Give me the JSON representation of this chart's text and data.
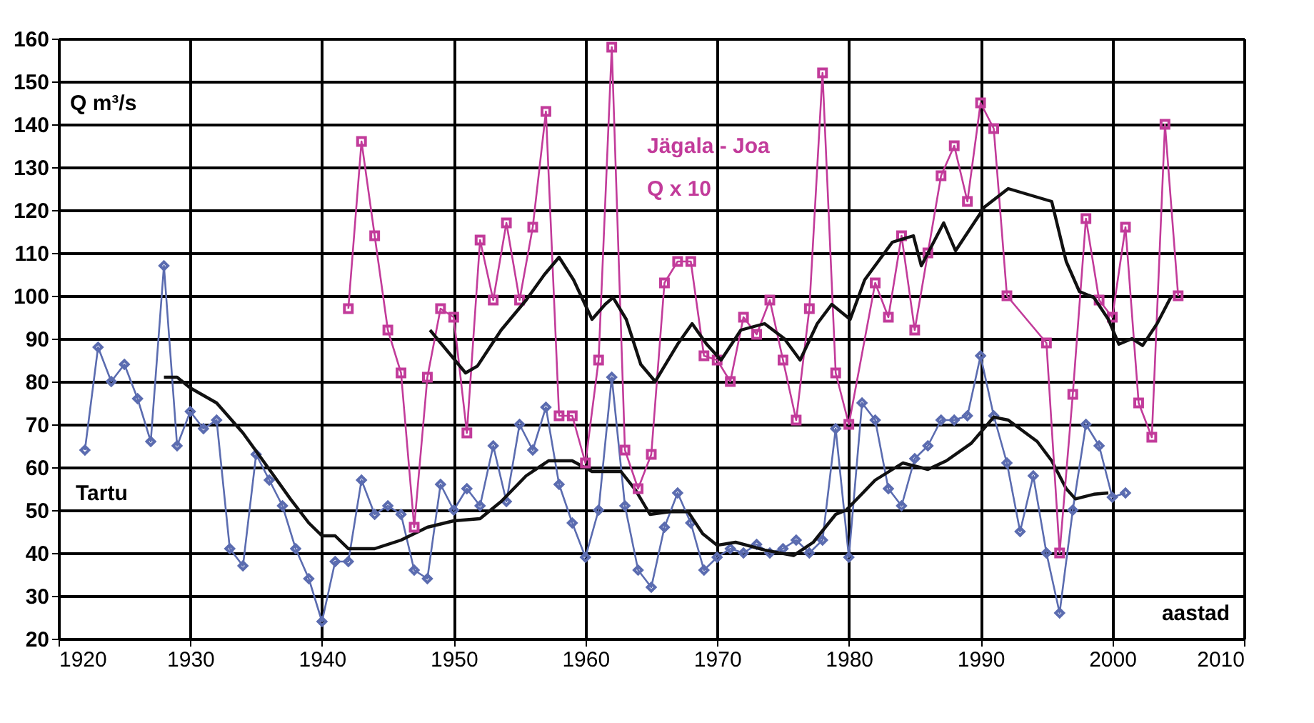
{
  "chart_data": {
    "type": "line",
    "ylabel": "Q m³/s",
    "xlabel": "aastad",
    "annotations": [
      "Q x 10"
    ],
    "xlim": [
      1920,
      2010
    ],
    "xticks": [
      1920,
      1930,
      1940,
      1950,
      1960,
      1970,
      1980,
      1990,
      2000,
      2010
    ],
    "ylim": [
      20,
      160
    ],
    "yticks": [
      20,
      30,
      40,
      50,
      60,
      70,
      80,
      90,
      100,
      110,
      120,
      130,
      140,
      150,
      160
    ],
    "grid": true,
    "series": [
      {
        "name": "Tartu",
        "color": "#5b6cb0",
        "marker": "diamond",
        "x": [
          1922,
          1923,
          1924,
          1925,
          1926,
          1927,
          1928,
          1929,
          1930,
          1931,
          1932,
          1933,
          1934,
          1935,
          1936,
          1937,
          1938,
          1939,
          1940,
          1941,
          1942,
          1943,
          1944,
          1945,
          1946,
          1947,
          1948,
          1949,
          1950,
          1951,
          1952,
          1953,
          1954,
          1955,
          1956,
          1957,
          1958,
          1959,
          1960,
          1961,
          1962,
          1963,
          1964,
          1965,
          1966,
          1967,
          1968,
          1969,
          1970,
          1971,
          1972,
          1973,
          1974,
          1975,
          1976,
          1977,
          1978,
          1979,
          1980,
          1981,
          1982,
          1983,
          1984,
          1985,
          1986,
          1987,
          1988,
          1989,
          1990,
          1991,
          1992,
          1993,
          1994,
          1995,
          1996,
          1997,
          1998,
          1999,
          2000,
          2001
        ],
        "values": [
          64,
          88,
          80,
          84,
          76,
          66,
          107,
          65,
          73,
          69,
          71,
          41,
          37,
          63,
          57,
          51,
          41,
          34,
          24,
          38,
          38,
          57,
          49,
          51,
          49,
          36,
          34,
          56,
          50,
          55,
          51,
          65,
          52,
          70,
          64,
          74,
          56,
          47,
          39,
          50,
          81,
          51,
          36,
          32,
          46,
          54,
          47,
          36,
          39,
          41,
          40,
          42,
          40,
          41,
          43,
          40,
          43,
          69,
          39,
          75,
          71,
          55,
          51,
          62,
          65,
          71,
          71,
          72,
          86,
          72,
          61,
          45,
          58,
          40,
          26,
          50,
          70,
          65,
          53,
          54
        ]
      },
      {
        "color": "#111111",
        "marker": "none",
        "x": [
          1928,
          1929,
          1930,
          1932,
          1934,
          1936,
          1937.6,
          1939,
          1940,
          1941,
          1942,
          1944,
          1946,
          1948,
          1950,
          1952,
          1953.6,
          1955.5,
          1957.2,
          1959,
          1960.5,
          1962.7,
          1963.8,
          1964.9,
          1966.4,
          1967.8,
          1968.9,
          1970,
          1971.4,
          1973.6,
          1975.8,
          1977.3,
          1979,
          1979.8,
          1982,
          1984.1,
          1986,
          1987.4,
          1989.3,
          1991,
          1992.1,
          1994.3,
          1995.4,
          1996.5,
          1997.2,
          1998.6,
          1999.7
        ],
        "values": [
          81,
          81,
          78.5,
          75,
          68,
          59.5,
          52.6,
          47,
          44,
          44,
          41,
          41,
          43,
          46,
          47.5,
          48,
          52,
          58,
          61.5,
          61.5,
          59,
          59,
          54.7,
          49,
          49.6,
          49.6,
          44.5,
          41.8,
          42.5,
          40.7,
          39.4,
          42.5,
          49,
          50,
          57,
          61,
          59.5,
          61.5,
          65.6,
          71.7,
          71,
          66,
          61.5,
          55,
          52.6,
          53.7,
          54
        ]
      },
      {
        "name": "Jägala - Joa",
        "color": "#c23b9a",
        "marker": "square",
        "x": [
          1942,
          1943,
          1944,
          1945,
          1946,
          1947,
          1948,
          1949,
          1950,
          1951,
          1952,
          1953,
          1954,
          1955,
          1956,
          1957,
          1958,
          1959,
          1960,
          1961,
          1962,
          1963,
          1964,
          1965,
          1966,
          1967,
          1968,
          1969,
          1970,
          1971,
          1972,
          1973,
          1974,
          1975,
          1976,
          1977,
          1978,
          1979,
          1980,
          1982,
          1983,
          1984,
          1985,
          1986,
          1987,
          1988,
          1989,
          1990,
          1991,
          1992,
          1995,
          1996,
          1997,
          1998,
          1999,
          2000,
          2001,
          2002,
          2003,
          2004,
          2005
        ],
        "values": [
          97,
          136,
          114,
          92,
          82,
          46,
          81,
          97,
          95,
          68,
          113,
          99,
          117,
          99,
          116,
          143,
          72,
          72,
          61,
          85,
          158,
          64,
          55,
          63,
          103,
          108,
          108,
          86,
          85,
          80,
          95,
          91,
          99,
          85,
          71,
          97,
          152,
          82,
          70,
          103,
          95,
          114,
          92,
          110,
          128,
          135,
          122,
          145,
          139,
          100,
          89,
          40,
          77,
          118,
          99,
          95,
          116,
          75,
          67,
          140,
          100
        ]
      },
      {
        "color": "#111111",
        "marker": "none",
        "x": [
          1948.2,
          1950.9,
          1951.8,
          1953.6,
          1955.5,
          1956.9,
          1958,
          1959.1,
          1960.5,
          1961.5,
          1962.1,
          1963.1,
          1964.2,
          1965.3,
          1967,
          1968.1,
          1969.2,
          1970.3,
          1971.8,
          1973.6,
          1975.1,
          1976.3,
          1977.6,
          1978.7,
          1980.1,
          1981.2,
          1983.3,
          1984.9,
          1985.5,
          1987.2,
          1988.1,
          1990.3,
          1992.1,
          1994.3,
          1995.4,
          1996.5,
          1997.5,
          1998.6,
          1999.7,
          2000.5,
          2001.5,
          2002.3,
          2003.4,
          2004.5
        ],
        "values": [
          92,
          82,
          83.6,
          92,
          99,
          105,
          109,
          103.7,
          94.5,
          98,
          99.6,
          94.5,
          84,
          80,
          88.7,
          93.5,
          88.7,
          85,
          92,
          93.5,
          90,
          85,
          93.5,
          98,
          94.5,
          103.7,
          112.5,
          114,
          107,
          117,
          110.5,
          120.7,
          125,
          123,
          122,
          108,
          101,
          99.6,
          94.5,
          88.7,
          90,
          88.4,
          93.5,
          100
        ]
      }
    ]
  }
}
